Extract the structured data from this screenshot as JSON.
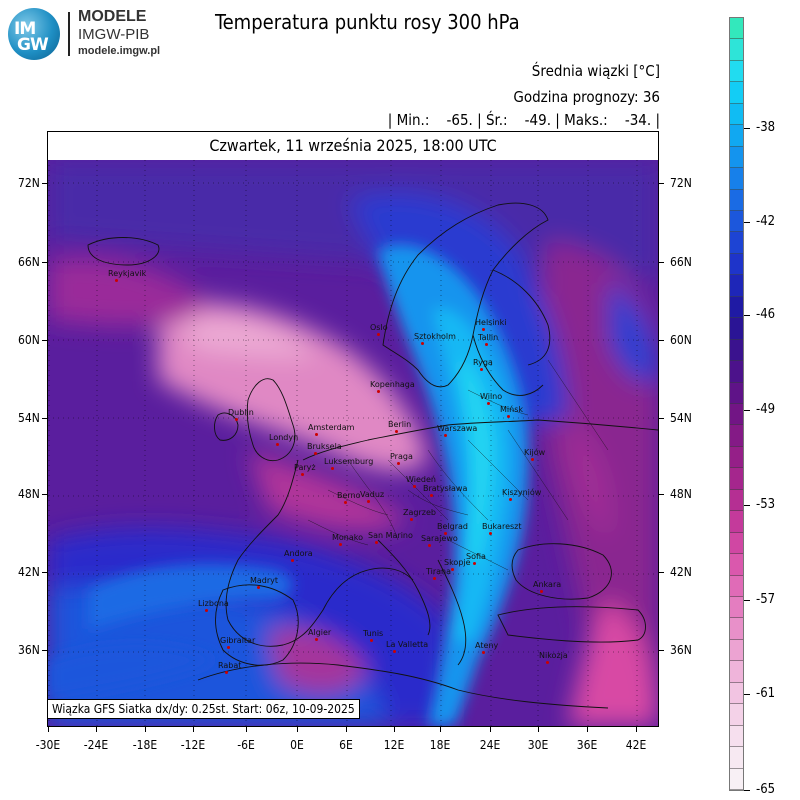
{
  "logo": {
    "line1": "IM",
    "line2": "GW",
    "name": "MODELE",
    "sub": "IMGW-PIB",
    "url": "modele.imgw.pl"
  },
  "header": {
    "title": "Temperatura punktu rosy 300 hPa",
    "line1": "Średnia wiązki [°C]",
    "line2": "Godzina prognozy: 36",
    "line3": "| Min.:    -65. | Śr.:    -49. | Maks.:    -34. |"
  },
  "map": {
    "date": "Czwartek, 11 września 2025, 18:00 UTC",
    "footer": "Wiązka GFS Siatka dx/dy: 0.25st. Start: 06z, 10-09-2025",
    "lat_labels": [
      "72N",
      "66N",
      "60N",
      "54N",
      "48N",
      "42N",
      "36N"
    ],
    "lon_labels": [
      "-30E",
      "-24E",
      "-18E",
      "-12E",
      "-6E",
      "0E",
      "6E",
      "12E",
      "18E",
      "24E",
      "30E",
      "36E",
      "42E"
    ],
    "cities": [
      {
        "name": "Oslo"
      },
      {
        "name": "Sztokholm"
      },
      {
        "name": "Helsinki"
      },
      {
        "name": "Tallin"
      },
      {
        "name": "Ryga"
      },
      {
        "name": "Kopenhaga"
      },
      {
        "name": "Wilno"
      },
      {
        "name": "Mińsk"
      },
      {
        "name": "Dublin"
      },
      {
        "name": "Londyn"
      },
      {
        "name": "Amsterdam"
      },
      {
        "name": "Bruksela"
      },
      {
        "name": "Luksemburg"
      },
      {
        "name": "Paryż"
      },
      {
        "name": "Berlin"
      },
      {
        "name": "Warszawa"
      },
      {
        "name": "Praga"
      },
      {
        "name": "Kijów"
      },
      {
        "name": "Wiedeń"
      },
      {
        "name": "Bratysława"
      },
      {
        "name": "Berno"
      },
      {
        "name": "Vaduz"
      },
      {
        "name": "Zagrzeb"
      },
      {
        "name": "Kiszyniów"
      },
      {
        "name": "Belgrad"
      },
      {
        "name": "Bukareszt"
      },
      {
        "name": "Monako"
      },
      {
        "name": "San Marino"
      },
      {
        "name": "Sarajewo"
      },
      {
        "name": "Andora"
      },
      {
        "name": "Sofia"
      },
      {
        "name": "Skopje"
      },
      {
        "name": "Tirana"
      },
      {
        "name": "Madryt"
      },
      {
        "name": "Ankara"
      },
      {
        "name": "Lizbona"
      },
      {
        "name": "Ateny"
      },
      {
        "name": "Algier"
      },
      {
        "name": "Tunis"
      },
      {
        "name": "La Valletta"
      },
      {
        "name": "Gibraltar"
      },
      {
        "name": "Rabat"
      },
      {
        "name": "Nikozja"
      },
      {
        "name": "Reykjavik"
      }
    ]
  },
  "colorbar": {
    "labels": [
      "-38",
      "-42",
      "-46",
      "-49",
      "-53",
      "-57",
      "-61",
      "-65"
    ],
    "segments": [
      "#33e8bc",
      "#2ee4d8",
      "#21dcf0",
      "#13cdf5",
      "#10bcf3",
      "#11a8f1",
      "#1494ee",
      "#1780ea",
      "#1a6be4",
      "#1c57dc",
      "#1d44d4",
      "#1e34ca",
      "#1e26b8",
      "#1f1aa4",
      "#2a1495",
      "#3a128e",
      "#4c128b",
      "#5f1388",
      "#721585",
      "#841a86",
      "#951f88",
      "#a5268d",
      "#b52f93",
      "#c43a9b",
      "#d047a3",
      "#da58ad",
      "#e06bb7",
      "#e47dc0",
      "#e890c9",
      "#eca3d2",
      "#efb4da",
      "#f2c4e2",
      "#f4d2e8",
      "#f6dfee",
      "#f7e9f2",
      "#f8f0f5"
    ]
  },
  "colors": {
    "jet_core": "#12a8f2",
    "pink_moist": "#e47dc0",
    "purple_bg": "#6a1a9a"
  }
}
